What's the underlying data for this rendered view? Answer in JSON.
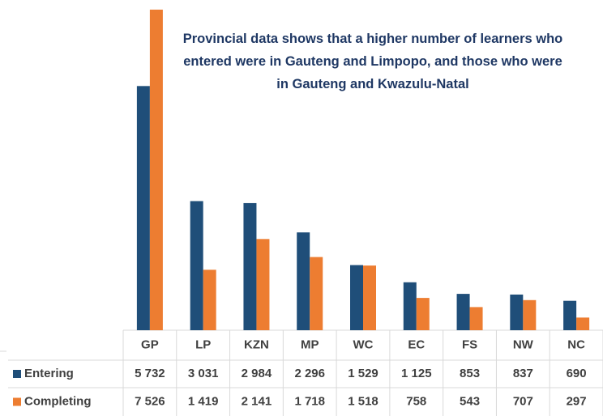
{
  "chart_data": {
    "type": "bar",
    "annotation": "Provincial data shows that a higher number of learners who entered were in Gauteng and Limpopo, and those who were in Gauteng and Kwazulu-Natal",
    "categories": [
      "GP",
      "LP",
      "KZN",
      "MP",
      "WC",
      "EC",
      "FS",
      "NW",
      "NC"
    ],
    "series": [
      {
        "name": "Entering",
        "color": "#1f4e79",
        "values": [
          5732,
          3031,
          2984,
          2296,
          1529,
          1125,
          853,
          837,
          690
        ],
        "value_labels": [
          "5 732",
          "3 031",
          "2 984",
          "2 296",
          "1 529",
          "1 125",
          "853",
          "837",
          "690"
        ]
      },
      {
        "name": "Completing",
        "color": "#ed7d31",
        "values": [
          7526,
          1419,
          2141,
          1718,
          1518,
          758,
          543,
          707,
          297
        ],
        "value_labels": [
          "7 526",
          "1 419",
          "2 141",
          "1 718",
          "1 518",
          "758",
          "543",
          "707",
          "297"
        ]
      }
    ],
    "ylim": [
      0,
      7600
    ]
  }
}
